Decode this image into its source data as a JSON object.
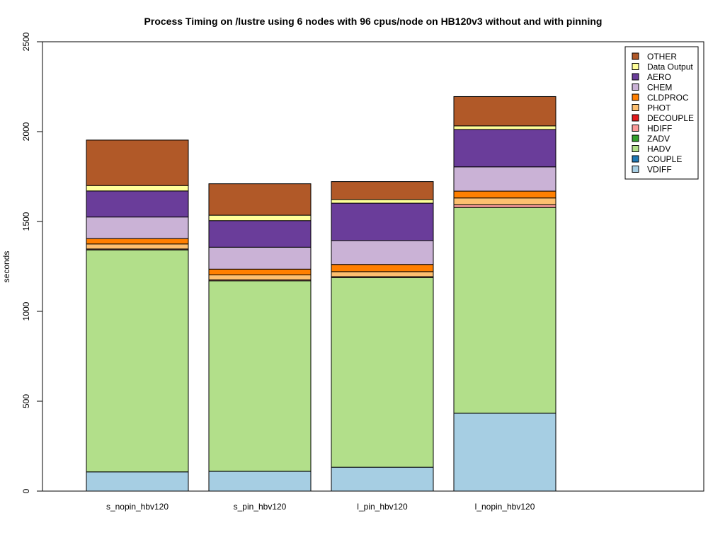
{
  "chart_data": {
    "type": "bar",
    "stacked": true,
    "title": "Process Timing on /lustre using 6 nodes with 96 cpus/node on HB120v3 without and with pinning",
    "xlabel": "",
    "ylabel": "seconds",
    "ylim": [
      0,
      2500
    ],
    "yticks": [
      0,
      500,
      1000,
      1500,
      2000,
      2500
    ],
    "grid": false,
    "legend_position": "top-right",
    "categories": [
      "s_nopin_hbv120",
      "s_pin_hbv120",
      "l_pin_hbv120",
      "l_nopin_hbv120"
    ],
    "series": [
      {
        "name": "VDIFF",
        "color": "#a6cee3",
        "values": [
          107,
          110,
          133,
          433
        ]
      },
      {
        "name": "COUPLE",
        "color": "#1f78b4",
        "values": [
          0,
          0,
          0,
          0
        ]
      },
      {
        "name": "HADV",
        "color": "#b2df8a",
        "values": [
          1235,
          1060,
          1055,
          1145
        ]
      },
      {
        "name": "ZADV",
        "color": "#33a02c",
        "values": [
          0,
          0,
          0,
          0
        ]
      },
      {
        "name": "HDIFF",
        "color": "#fb9a99",
        "values": [
          5,
          5,
          5,
          15
        ]
      },
      {
        "name": "DECOUPLE",
        "color": "#e31a1c",
        "values": [
          0,
          0,
          0,
          0
        ]
      },
      {
        "name": "PHOT",
        "color": "#fdbf6f",
        "values": [
          28,
          28,
          28,
          38
        ]
      },
      {
        "name": "CLDPROC",
        "color": "#ff7f00",
        "values": [
          30,
          32,
          40,
          38
        ]
      },
      {
        "name": "CHEM",
        "color": "#cab2d6",
        "values": [
          120,
          122,
          133,
          135
        ]
      },
      {
        "name": "AERO",
        "color": "#6a3d9a",
        "values": [
          145,
          148,
          208,
          208
        ]
      },
      {
        "name": "Data Output",
        "color": "#ffff99",
        "values": [
          30,
          30,
          20,
          20
        ]
      },
      {
        "name": "OTHER",
        "color": "#b15928",
        "values": [
          253,
          175,
          100,
          163
        ]
      }
    ]
  }
}
